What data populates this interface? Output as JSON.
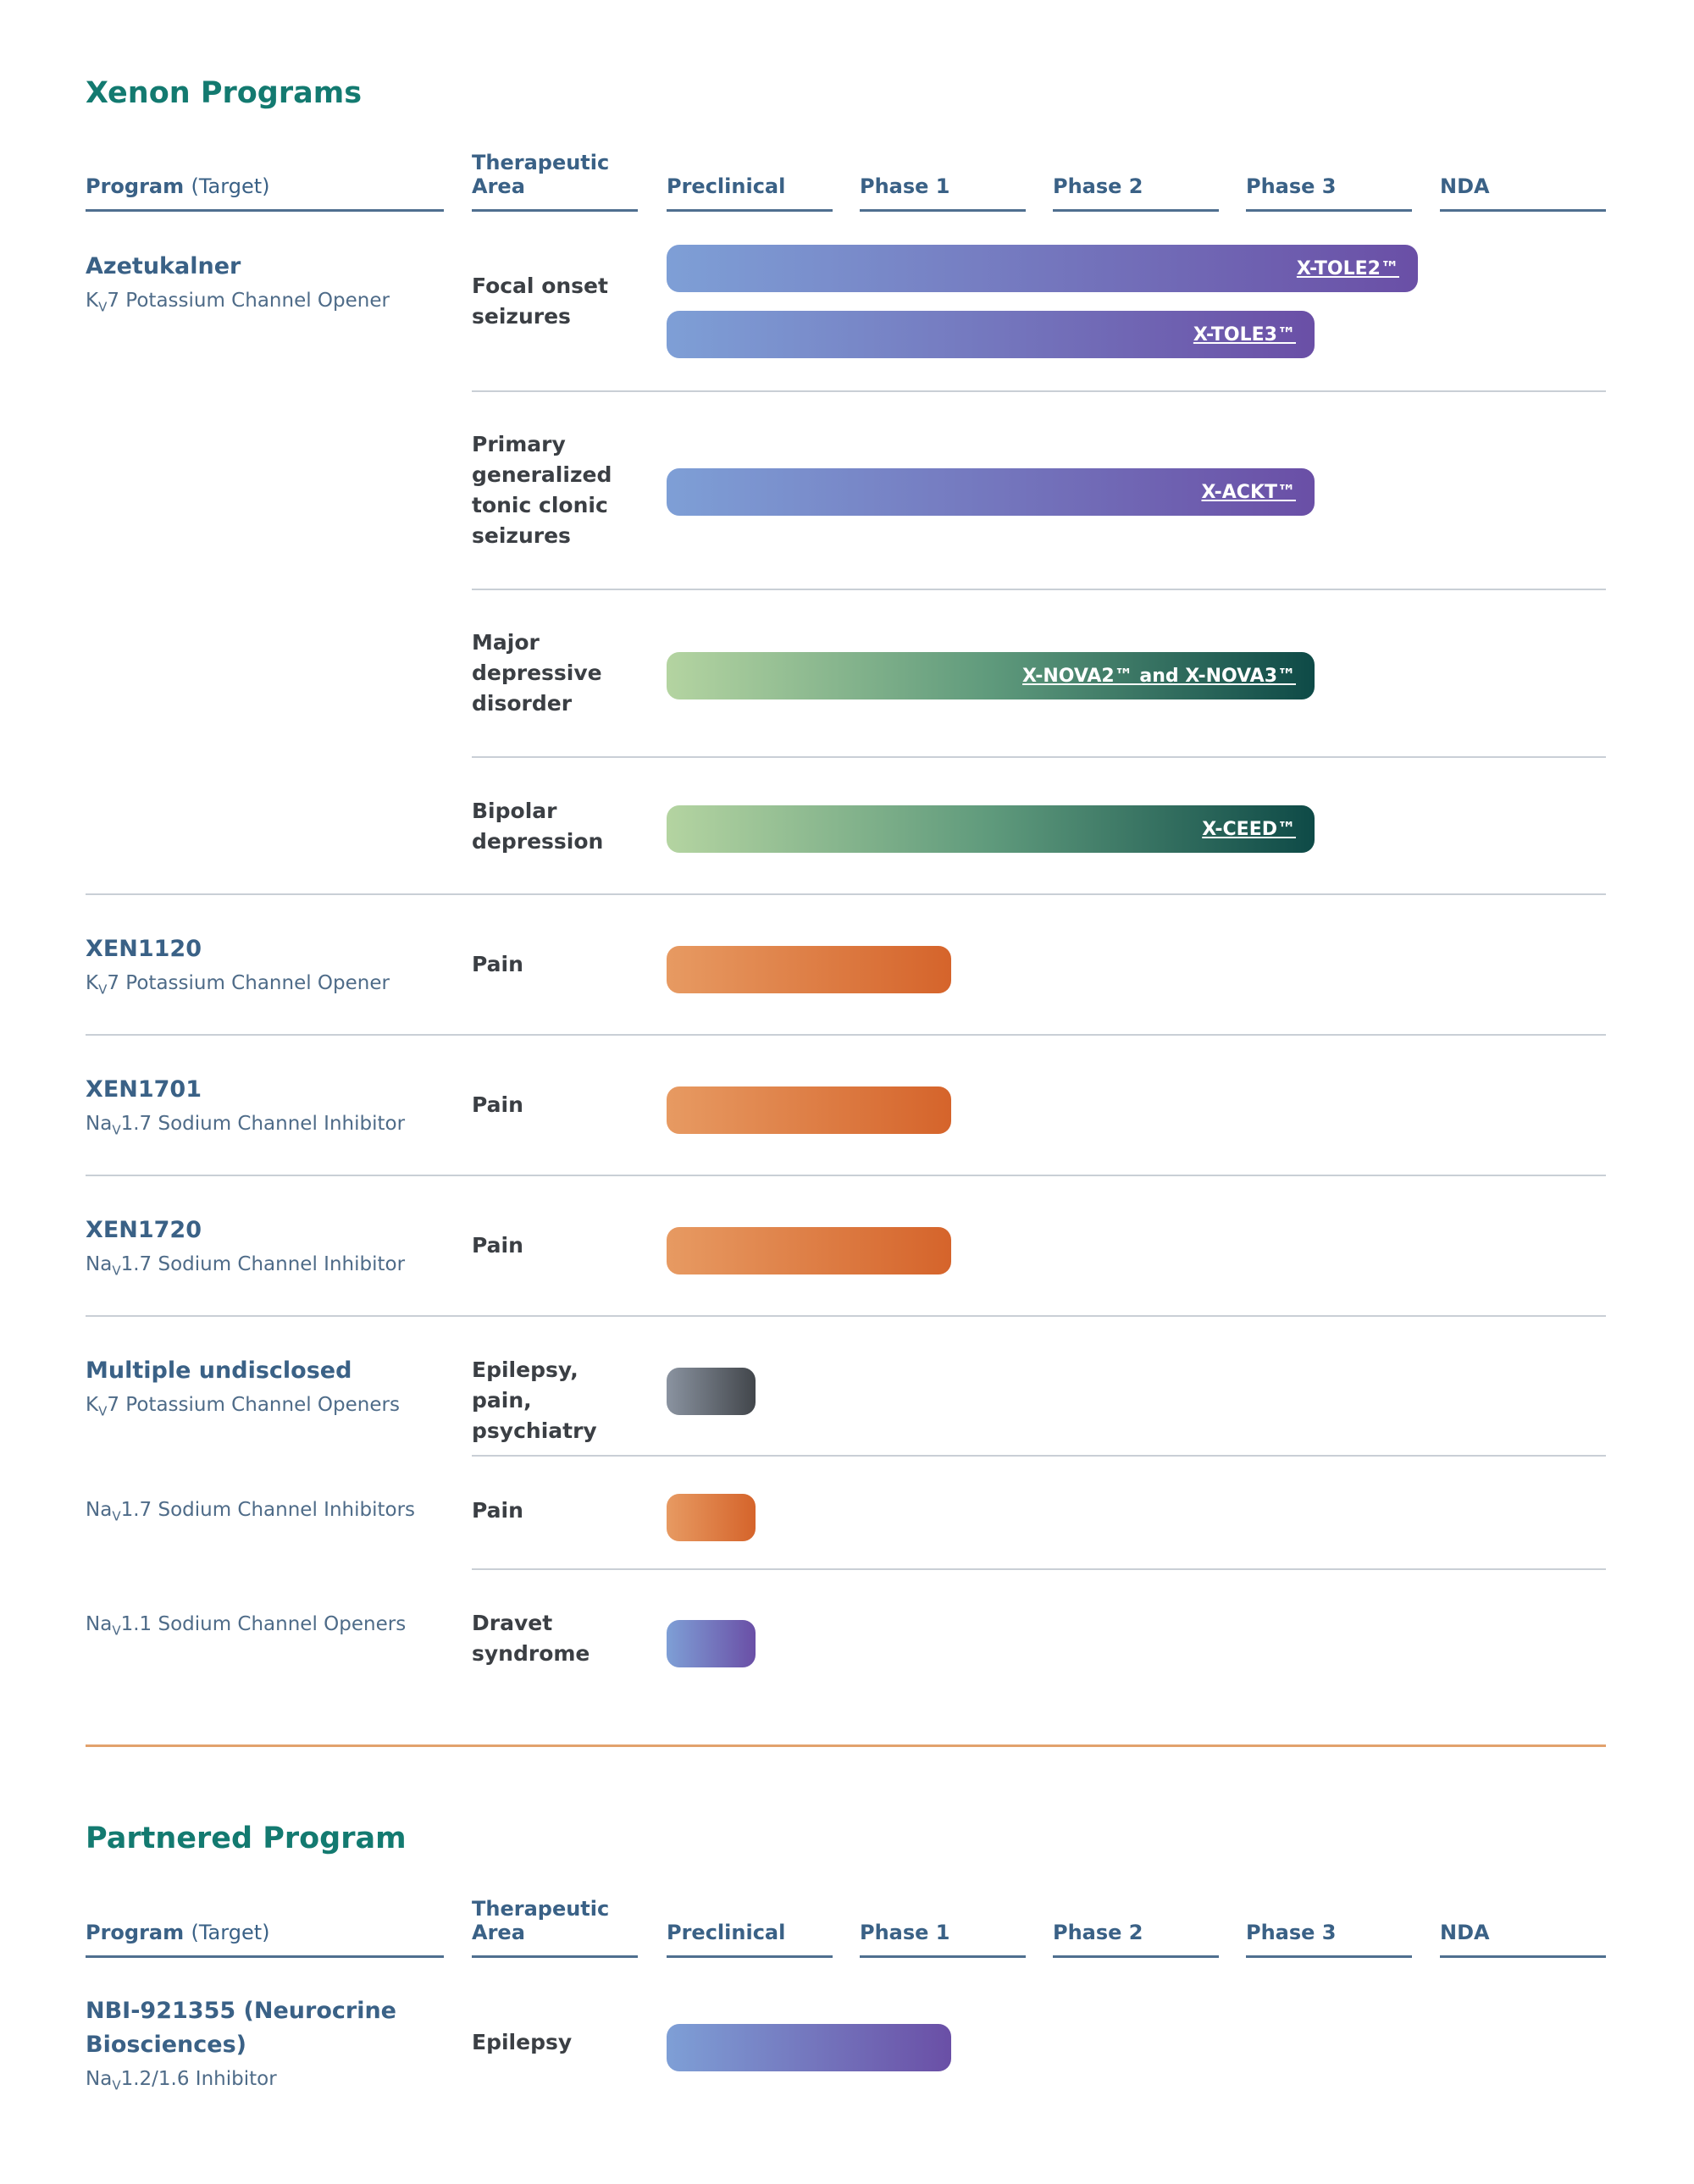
{
  "sections": {
    "xenon_title": "Xenon Programs",
    "partnered_title": "Partnered Program"
  },
  "headers": {
    "program": "Program",
    "target": "(Target)",
    "area": "Therapeutic Area",
    "preclinical": "Preclinical",
    "phase1": "Phase 1",
    "phase2": "Phase 2",
    "phase3": "Phase 3",
    "nda": "NDA"
  },
  "programs": {
    "azetukalner": {
      "name": "Azetukalner",
      "target_pre": "K",
      "target_sub": "V",
      "target_post": "7 Potassium Channel Opener"
    },
    "xen1120": {
      "name": "XEN1120",
      "target_pre": "K",
      "target_sub": "V",
      "target_post": "7 Potassium Channel Opener"
    },
    "xen1701": {
      "name": "XEN1701",
      "target_pre": "Na",
      "target_sub": "V",
      "target_post": "1.7 Sodium Channel Inhibitor"
    },
    "xen1720": {
      "name": "XEN1720",
      "target_pre": "Na",
      "target_sub": "V",
      "target_post": "1.7 Sodium Channel Inhibitor"
    },
    "undisclosed": {
      "name": "Multiple undisclosed",
      "target_pre": "K",
      "target_sub": "V",
      "target_post": "7 Potassium Channel Openers"
    },
    "nav17": {
      "target_pre": "Na",
      "target_sub": "V",
      "target_post": "1.7 Sodium Channel Inhibitors"
    },
    "nav11": {
      "target_pre": "Na",
      "target_sub": "V",
      "target_post": "1.1 Sodium Channel Openers"
    },
    "nbi": {
      "name": "NBI-921355 (Neurocrine Biosciences)",
      "target_pre": "Na",
      "target_sub": "V",
      "target_post": "1.2/1.6 Inhibitor"
    }
  },
  "areas": {
    "focal": "Focal onset seizures",
    "pgtcs": "Primary generalized tonic clonic seizures",
    "mdd": "Major depressive disorder",
    "bipolar": "Bipolar depression",
    "pain": "Pain",
    "epilepsy_pain_psych": "Epilepsy, pain, psychiatry",
    "dravet": "Dravet syndrome",
    "epilepsy": "Epilepsy"
  },
  "colors": {
    "purple": [
      "#7e9fd6",
      "#6a4fa6"
    ],
    "green": [
      "#b4d4a1",
      "#0e4a47"
    ],
    "orange": [
      "#e79a62",
      "#d5642b"
    ],
    "gray": [
      "#8a93a0",
      "#42464b"
    ]
  },
  "chart_data": {
    "type": "bar",
    "categories": [
      "Preclinical",
      "Phase 1",
      "Phase 2",
      "Phase 3",
      "NDA"
    ],
    "bars": [
      {
        "program": "Azetukalner",
        "area": "Focal onset seizures",
        "trial": "X-TOLE2™",
        "stage_progress": 3.88,
        "color": "purple"
      },
      {
        "program": "Azetukalner",
        "area": "Focal onset seizures",
        "trial": "X-TOLE3™",
        "stage_progress": 3.35,
        "color": "purple"
      },
      {
        "program": "Azetukalner",
        "area": "Primary generalized tonic clonic seizures",
        "trial": "X-ACKT™",
        "stage_progress": 3.35,
        "color": "purple"
      },
      {
        "program": "Azetukalner",
        "area": "Major depressive disorder",
        "trial": "X-NOVA2™ and X-NOVA3™",
        "stage_progress": 3.35,
        "color": "green"
      },
      {
        "program": "Azetukalner",
        "area": "Bipolar depression",
        "trial": "X-CEED™",
        "stage_progress": 3.35,
        "color": "green"
      },
      {
        "program": "XEN1120",
        "area": "Pain",
        "trial": "",
        "stage_progress": 1.47,
        "color": "orange"
      },
      {
        "program": "XEN1701",
        "area": "Pain",
        "trial": "",
        "stage_progress": 1.47,
        "color": "orange"
      },
      {
        "program": "XEN1720",
        "area": "Pain",
        "trial": "",
        "stage_progress": 1.47,
        "color": "orange"
      },
      {
        "program": "Multiple undisclosed",
        "area": "Epilepsy, pain, psychiatry",
        "trial": "",
        "stage_progress": 0.46,
        "color": "gray"
      },
      {
        "program": "Multiple undisclosed",
        "area": "Pain",
        "trial": "",
        "stage_progress": 0.46,
        "color": "orange"
      },
      {
        "program": "Multiple undisclosed",
        "area": "Dravet syndrome",
        "trial": "",
        "stage_progress": 0.46,
        "color": "purple"
      },
      {
        "program": "NBI-921355 (Neurocrine Biosciences)",
        "area": "Epilepsy",
        "trial": "",
        "stage_progress": 1.47,
        "color": "purple"
      }
    ]
  }
}
